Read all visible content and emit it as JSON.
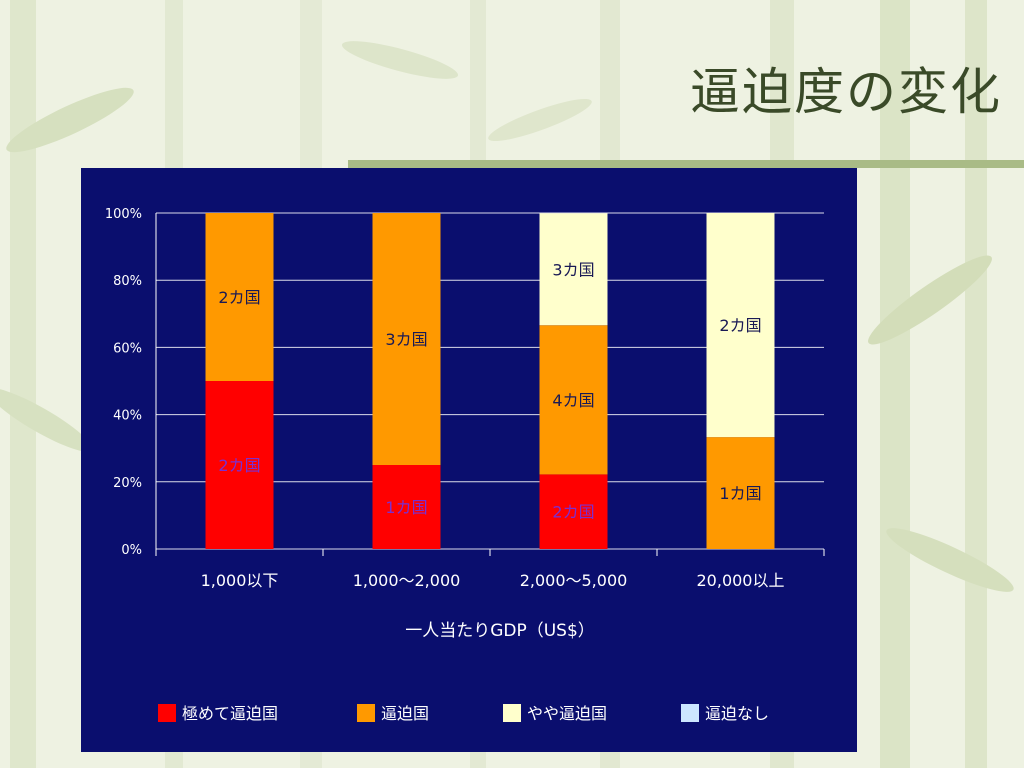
{
  "slide": {
    "title": "逼迫度の変化"
  },
  "chart_data": {
    "type": "bar",
    "stacked": true,
    "categories": [
      "1,000以下",
      "1,000～2,000",
      "2,000～5,000",
      "20,000以上"
    ],
    "xlabel": "一人当たりGDP（US$）",
    "ylabel": "",
    "ylim": [
      0,
      100
    ],
    "yticks": [
      "0%",
      "20%",
      "40%",
      "60%",
      "80%",
      "100%"
    ],
    "grid": true,
    "legend_position": "bottom",
    "series": [
      {
        "name": "極めて逼迫国",
        "color": "#ff0000",
        "label_color": "#7b2fd0",
        "values": [
          50,
          25,
          22.2,
          0
        ],
        "labels": [
          "2カ国",
          "1カ国",
          "2カ国",
          ""
        ]
      },
      {
        "name": "逼迫国",
        "color": "#ff9900",
        "label_color": "#1a1a55",
        "values": [
          50,
          75,
          44.4,
          33.3
        ],
        "labels": [
          "2カ国",
          "3カ国",
          "4カ国",
          "1カ国"
        ]
      },
      {
        "name": "やや逼迫国",
        "color": "#ffffcc",
        "label_color": "#1a1a55",
        "values": [
          0,
          0,
          33.3,
          66.7
        ],
        "labels": [
          "",
          "",
          "3カ国",
          "2カ国"
        ]
      },
      {
        "name": "逼迫なし",
        "color": "#cce6ff",
        "label_color": "#1a1a55",
        "values": [
          0,
          0,
          0,
          0
        ],
        "labels": [
          "",
          "",
          "",
          ""
        ]
      }
    ]
  }
}
